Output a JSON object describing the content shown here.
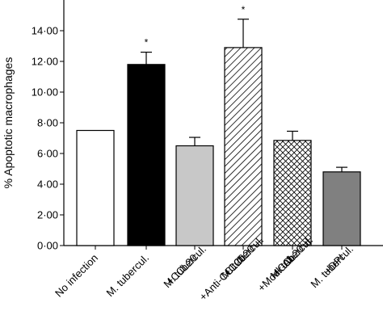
{
  "chart_data": {
    "type": "bar",
    "title": "",
    "xlabel": "",
    "ylabel": "% Apoptotic macrophages",
    "ylim": [
      0,
      16
    ],
    "yticks": [
      "0·00",
      "2·00",
      "4·00",
      "6·00",
      "8·00",
      "10·00",
      "12·00",
      "14·00"
    ],
    "grid": false,
    "legend": "none",
    "categories": [
      [
        "No infection"
      ],
      [
        "M. tubercul."
      ],
      [
        "M. tubercul.",
        "+CCL20"
      ],
      [
        "M. tubercul.",
        "+CCL20",
        "+Anti-CCL20"
      ],
      [
        "M. tubercul.",
        "+CCL20",
        "+Mock-Ab"
      ],
      [
        "M. tubercul.",
        "+DPI"
      ]
    ],
    "values": [
      7.5,
      11.8,
      6.5,
      12.9,
      6.85,
      4.8
    ],
    "errors": [
      0,
      0.8,
      0.55,
      1.85,
      0.6,
      0.3
    ],
    "annotations": [
      "",
      "*",
      "",
      "*",
      "",
      ""
    ],
    "fills": [
      "white",
      "black",
      "light-gray",
      "diagonal-hatch",
      "crosshatch",
      "dark-gray"
    ],
    "colors": {
      "black": "#000000",
      "light_gray": "#c8c8c8",
      "dark_gray": "#808080",
      "white": "#ffffff"
    }
  }
}
